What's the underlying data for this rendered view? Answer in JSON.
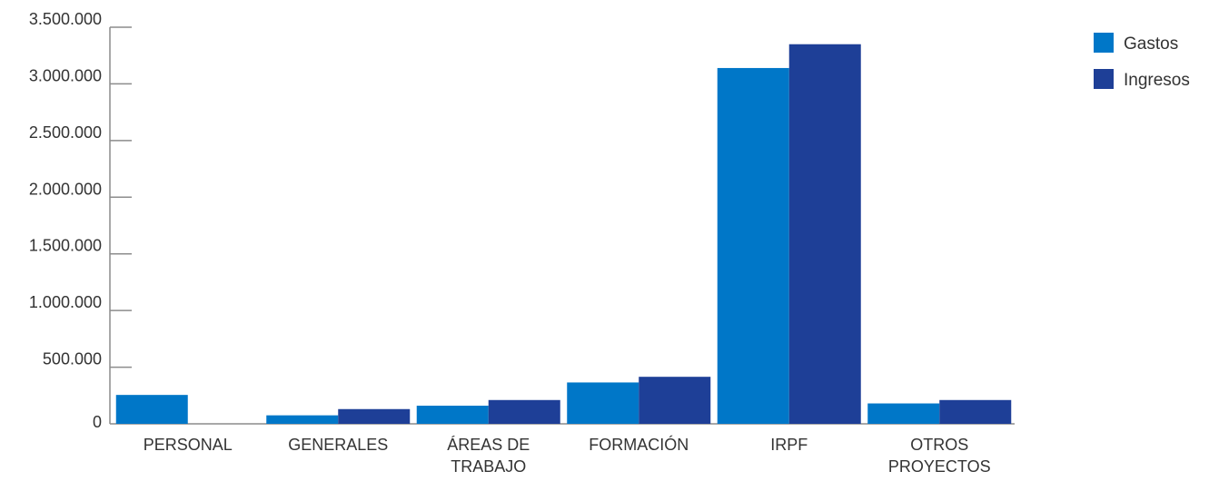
{
  "chart_data": {
    "type": "bar",
    "categories": [
      [
        "PERSONAL"
      ],
      [
        "GENERALES"
      ],
      [
        "ÁREAS DE",
        "TRABAJO"
      ],
      [
        "FORMACIÓN"
      ],
      [
        "IRPF"
      ],
      [
        "OTROS",
        "PROYECTOS"
      ]
    ],
    "series": [
      {
        "name": "Gastos",
        "color": "#0077c8",
        "values": [
          255000,
          75000,
          160000,
          365000,
          3140000,
          180000
        ]
      },
      {
        "name": "Ingresos",
        "color": "#1e3f97",
        "values": [
          0,
          130000,
          210000,
          415000,
          3350000,
          210000
        ]
      }
    ],
    "yticks": [
      "0",
      "500.000",
      "1.000.000",
      "1.500.000",
      "2.000.000",
      "2.500.000",
      "3.000.000",
      "3.500.000"
    ],
    "ylim": [
      0,
      3500000
    ],
    "ytick_step": 500000,
    "title": "",
    "xlabel": "",
    "ylabel": "",
    "legend_position": "top-right",
    "grid": false,
    "axis_color": "#8c8c8c"
  }
}
